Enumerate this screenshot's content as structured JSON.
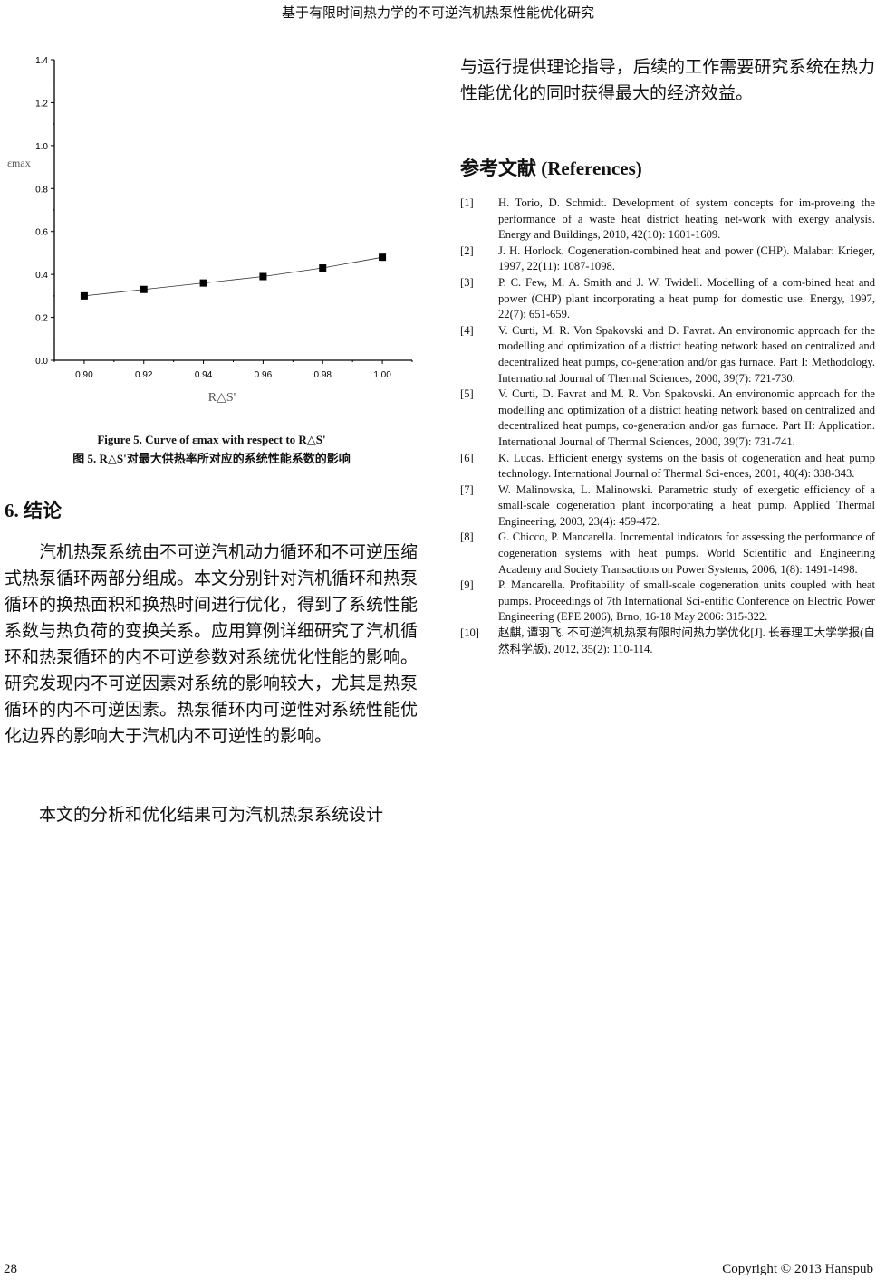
{
  "header": {
    "title": "基于有限时间热力学的不可逆汽机热泵性能优化研究"
  },
  "chart_data": {
    "type": "line",
    "x": [
      0.9,
      0.92,
      0.94,
      0.96,
      0.98,
      1.0
    ],
    "series": [
      {
        "values": [
          0.3,
          0.33,
          0.36,
          0.39,
          0.43,
          0.48
        ],
        "marker": "square",
        "color": "#000000"
      }
    ],
    "xlabel": "R△S'",
    "ylabel": "εmax",
    "xlim": [
      0.89,
      1.01
    ],
    "ylim": [
      0.0,
      1.4
    ],
    "xticks": [
      "0.90",
      "0.92",
      "0.94",
      "0.96",
      "0.98",
      "1.00"
    ],
    "yticks": [
      "0.0",
      "0.2",
      "0.4",
      "0.6",
      "0.8",
      "1.0",
      "1.2",
      "1.4"
    ],
    "grid": false
  },
  "figure": {
    "caption_en": "Figure 5. Curve of εmax with respect to R△S'",
    "caption_zh": "图 5. R△S'对最大供热率所对应的系统性能系数的影响"
  },
  "section": {
    "heading": "6.  结论",
    "para1": "汽机热泵系统由不可逆汽机动力循环和不可逆压缩式热泵循环两部分组成。本文分别针对汽机循环和热泵循环的换热面积和换热时间进行优化，得到了系统性能系数与热负荷的变换关系。应用算例详细研究了汽机循环和热泵循环的内不可逆参数对系统优化性能的影响。研究发现内不可逆因素对系统的影响较大，尤其是热泵循环的内不可逆因素。热泵循环内可逆性对系统性能优化边界的影响大于汽机内不可逆性的影响。",
    "para2": "本文的分析和优化结果可为汽机热泵系统设计",
    "para2_cont": "与运行提供理论指导，后续的工作需要研究系统在热力性能优化的同时获得最大的经济效益。"
  },
  "references": {
    "title": "参考文献  (References)",
    "items": [
      {
        "num": "[1]",
        "text": "H. Torio, D. Schmidt. Development of system concepts for im-proveing the performance of a waste heat district heating net-work with exergy analysis. Energy and Buildings, 2010, 42(10): 1601-1609."
      },
      {
        "num": "[2]",
        "text": "J. H. Horlock. Cogeneration-combined heat and power (CHP). Malabar: Krieger, 1997, 22(11): 1087-1098."
      },
      {
        "num": "[3]",
        "text": "P. C. Few, M. A. Smith and J. W. Twidell. Modelling of a com-bined heat and power (CHP) plant incorporating a heat pump for domestic use. Energy, 1997, 22(7): 651-659."
      },
      {
        "num": "[4]",
        "text": "V. Curti, M. R. Von Spakovski and D. Favrat. An environomic approach for the modelling and optimization of a district heating network based on centralized and decentralized heat pumps, co-generation and/or gas furnace. Part I: Methodology. International Journal of Thermal Sciences, 2000, 39(7): 721-730."
      },
      {
        "num": "[5]",
        "text": "V. Curti, D. Favrat and M. R. Von Spakovski. An environomic approach for the modelling and optimization of a district heating network based on centralized and decentralized heat pumps, co-generation and/or gas furnace. Part II: Application. International Journal of Thermal Sciences, 2000, 39(7): 731-741."
      },
      {
        "num": "[6]",
        "text": "K. Lucas. Efficient energy systems on the basis of cogeneration and heat pump technology. International Journal of Thermal Sci-ences, 2001, 40(4): 338-343."
      },
      {
        "num": "[7]",
        "text": "W. Malinowska, L. Malinowski. Parametric study of exergetic efficiency of a small-scale cogeneration plant incorporating a heat pump. Applied Thermal Engineering, 2003, 23(4): 459-472."
      },
      {
        "num": "[8]",
        "text": "G. Chicco, P. Mancarella. Incremental indicators for assessing the performance of cogeneration systems with heat pumps. World Scientific and Engineering Academy and Society Transactions on Power Systems, 2006, 1(8): 1491-1498."
      },
      {
        "num": "[9]",
        "text": "P. Mancarella. Profitability of small-scale cogeneration units coupled with heat pumps. Proceedings of 7th International Sci-entific Conference on Electric Power Engineering (EPE 2006), Brno, 16-18 May 2006: 315-322."
      },
      {
        "num": "[10]",
        "text": "赵麒, 谭羽飞. 不可逆汽机热泵有限时间热力学优化[J]. 长春理工大学学报(自然科学版), 2012, 35(2): 110-114."
      }
    ]
  },
  "footer": {
    "page": "28",
    "copyright": "Copyright © 2013 Hanspub"
  }
}
